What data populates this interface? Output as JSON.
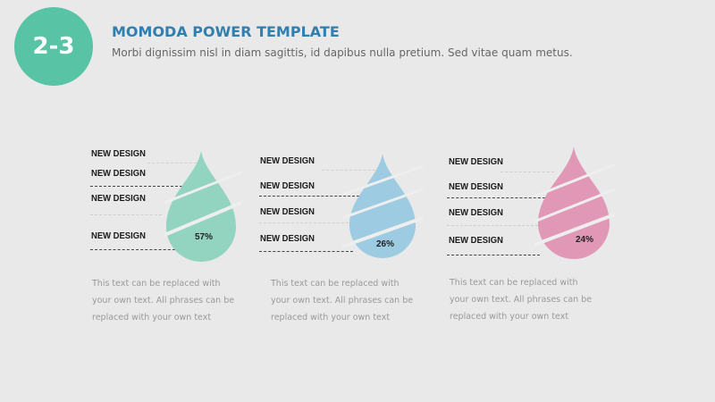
{
  "badge": {
    "text": "2-3",
    "color": "#58c3a5"
  },
  "header": {
    "title": "MOMODA POWER TEMPLATE",
    "subtitle": "Morbi dignissim nisl in diam sagittis, id dapibus nulla pretium. Sed vitae quam metus."
  },
  "groups": [
    {
      "color": "#92d4c0",
      "labels": [
        "NEW DESIGN",
        "NEW DESIGN",
        "NEW DESIGN",
        "NEW DESIGN"
      ],
      "percent": "57%",
      "desc": [
        "This text can be replaced with",
        "your own text. All phrases can be",
        "replaced with your own text"
      ]
    },
    {
      "color": "#9ccbe2",
      "labels": [
        "NEW DESIGN",
        "NEW DESIGN",
        "NEW DESIGN",
        "NEW DESIGN"
      ],
      "percent": "26%",
      "desc": [
        "This text can be replaced with",
        "your own text. All phrases can be",
        "replaced with your own text"
      ]
    },
    {
      "color": "#e198b7",
      "labels": [
        "NEW DESIGN",
        "NEW DESIGN",
        "NEW DESIGN",
        "NEW DESIGN"
      ],
      "percent": "24%",
      "desc": [
        "This text can be replaced with",
        "your own text. All phrases can be",
        "replaced with your own text"
      ]
    }
  ]
}
